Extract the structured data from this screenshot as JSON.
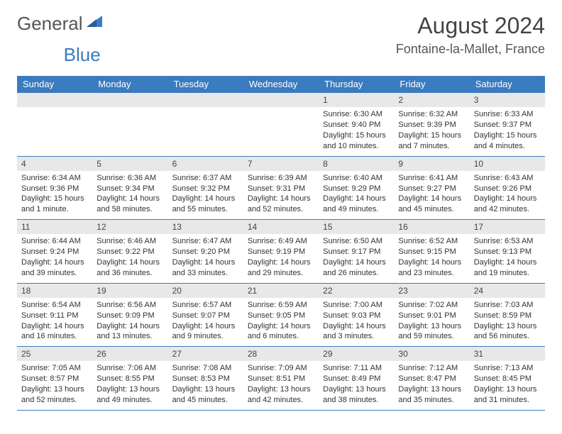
{
  "logo": {
    "text1": "General",
    "text2": "Blue"
  },
  "title": "August 2024",
  "location": "Fontaine-la-Mallet, France",
  "colors": {
    "header_bg": "#3b7bbf",
    "header_text": "#ffffff",
    "daynum_bg": "#e8e8e8",
    "border": "#3b7bbf",
    "body_text": "#333333",
    "title_text": "#444444",
    "logo_gray": "#555555",
    "logo_blue": "#3b7bbf",
    "background": "#ffffff"
  },
  "typography": {
    "title_fontsize": 32,
    "location_fontsize": 18,
    "header_fontsize": 13,
    "daynum_fontsize": 12,
    "content_fontsize": 11,
    "logo_fontsize": 26
  },
  "day_headers": [
    "Sunday",
    "Monday",
    "Tuesday",
    "Wednesday",
    "Thursday",
    "Friday",
    "Saturday"
  ],
  "weeks": [
    [
      {
        "n": "",
        "sr": "",
        "ss": "",
        "dl": ""
      },
      {
        "n": "",
        "sr": "",
        "ss": "",
        "dl": ""
      },
      {
        "n": "",
        "sr": "",
        "ss": "",
        "dl": ""
      },
      {
        "n": "",
        "sr": "",
        "ss": "",
        "dl": ""
      },
      {
        "n": "1",
        "sr": "Sunrise: 6:30 AM",
        "ss": "Sunset: 9:40 PM",
        "dl": "Daylight: 15 hours and 10 minutes."
      },
      {
        "n": "2",
        "sr": "Sunrise: 6:32 AM",
        "ss": "Sunset: 9:39 PM",
        "dl": "Daylight: 15 hours and 7 minutes."
      },
      {
        "n": "3",
        "sr": "Sunrise: 6:33 AM",
        "ss": "Sunset: 9:37 PM",
        "dl": "Daylight: 15 hours and 4 minutes."
      }
    ],
    [
      {
        "n": "4",
        "sr": "Sunrise: 6:34 AM",
        "ss": "Sunset: 9:36 PM",
        "dl": "Daylight: 15 hours and 1 minute."
      },
      {
        "n": "5",
        "sr": "Sunrise: 6:36 AM",
        "ss": "Sunset: 9:34 PM",
        "dl": "Daylight: 14 hours and 58 minutes."
      },
      {
        "n": "6",
        "sr": "Sunrise: 6:37 AM",
        "ss": "Sunset: 9:32 PM",
        "dl": "Daylight: 14 hours and 55 minutes."
      },
      {
        "n": "7",
        "sr": "Sunrise: 6:39 AM",
        "ss": "Sunset: 9:31 PM",
        "dl": "Daylight: 14 hours and 52 minutes."
      },
      {
        "n": "8",
        "sr": "Sunrise: 6:40 AM",
        "ss": "Sunset: 9:29 PM",
        "dl": "Daylight: 14 hours and 49 minutes."
      },
      {
        "n": "9",
        "sr": "Sunrise: 6:41 AM",
        "ss": "Sunset: 9:27 PM",
        "dl": "Daylight: 14 hours and 45 minutes."
      },
      {
        "n": "10",
        "sr": "Sunrise: 6:43 AM",
        "ss": "Sunset: 9:26 PM",
        "dl": "Daylight: 14 hours and 42 minutes."
      }
    ],
    [
      {
        "n": "11",
        "sr": "Sunrise: 6:44 AM",
        "ss": "Sunset: 9:24 PM",
        "dl": "Daylight: 14 hours and 39 minutes."
      },
      {
        "n": "12",
        "sr": "Sunrise: 6:46 AM",
        "ss": "Sunset: 9:22 PM",
        "dl": "Daylight: 14 hours and 36 minutes."
      },
      {
        "n": "13",
        "sr": "Sunrise: 6:47 AM",
        "ss": "Sunset: 9:20 PM",
        "dl": "Daylight: 14 hours and 33 minutes."
      },
      {
        "n": "14",
        "sr": "Sunrise: 6:49 AM",
        "ss": "Sunset: 9:19 PM",
        "dl": "Daylight: 14 hours and 29 minutes."
      },
      {
        "n": "15",
        "sr": "Sunrise: 6:50 AM",
        "ss": "Sunset: 9:17 PM",
        "dl": "Daylight: 14 hours and 26 minutes."
      },
      {
        "n": "16",
        "sr": "Sunrise: 6:52 AM",
        "ss": "Sunset: 9:15 PM",
        "dl": "Daylight: 14 hours and 23 minutes."
      },
      {
        "n": "17",
        "sr": "Sunrise: 6:53 AM",
        "ss": "Sunset: 9:13 PM",
        "dl": "Daylight: 14 hours and 19 minutes."
      }
    ],
    [
      {
        "n": "18",
        "sr": "Sunrise: 6:54 AM",
        "ss": "Sunset: 9:11 PM",
        "dl": "Daylight: 14 hours and 16 minutes."
      },
      {
        "n": "19",
        "sr": "Sunrise: 6:56 AM",
        "ss": "Sunset: 9:09 PM",
        "dl": "Daylight: 14 hours and 13 minutes."
      },
      {
        "n": "20",
        "sr": "Sunrise: 6:57 AM",
        "ss": "Sunset: 9:07 PM",
        "dl": "Daylight: 14 hours and 9 minutes."
      },
      {
        "n": "21",
        "sr": "Sunrise: 6:59 AM",
        "ss": "Sunset: 9:05 PM",
        "dl": "Daylight: 14 hours and 6 minutes."
      },
      {
        "n": "22",
        "sr": "Sunrise: 7:00 AM",
        "ss": "Sunset: 9:03 PM",
        "dl": "Daylight: 14 hours and 3 minutes."
      },
      {
        "n": "23",
        "sr": "Sunrise: 7:02 AM",
        "ss": "Sunset: 9:01 PM",
        "dl": "Daylight: 13 hours and 59 minutes."
      },
      {
        "n": "24",
        "sr": "Sunrise: 7:03 AM",
        "ss": "Sunset: 8:59 PM",
        "dl": "Daylight: 13 hours and 56 minutes."
      }
    ],
    [
      {
        "n": "25",
        "sr": "Sunrise: 7:05 AM",
        "ss": "Sunset: 8:57 PM",
        "dl": "Daylight: 13 hours and 52 minutes."
      },
      {
        "n": "26",
        "sr": "Sunrise: 7:06 AM",
        "ss": "Sunset: 8:55 PM",
        "dl": "Daylight: 13 hours and 49 minutes."
      },
      {
        "n": "27",
        "sr": "Sunrise: 7:08 AM",
        "ss": "Sunset: 8:53 PM",
        "dl": "Daylight: 13 hours and 45 minutes."
      },
      {
        "n": "28",
        "sr": "Sunrise: 7:09 AM",
        "ss": "Sunset: 8:51 PM",
        "dl": "Daylight: 13 hours and 42 minutes."
      },
      {
        "n": "29",
        "sr": "Sunrise: 7:11 AM",
        "ss": "Sunset: 8:49 PM",
        "dl": "Daylight: 13 hours and 38 minutes."
      },
      {
        "n": "30",
        "sr": "Sunrise: 7:12 AM",
        "ss": "Sunset: 8:47 PM",
        "dl": "Daylight: 13 hours and 35 minutes."
      },
      {
        "n": "31",
        "sr": "Sunrise: 7:13 AM",
        "ss": "Sunset: 8:45 PM",
        "dl": "Daylight: 13 hours and 31 minutes."
      }
    ]
  ]
}
